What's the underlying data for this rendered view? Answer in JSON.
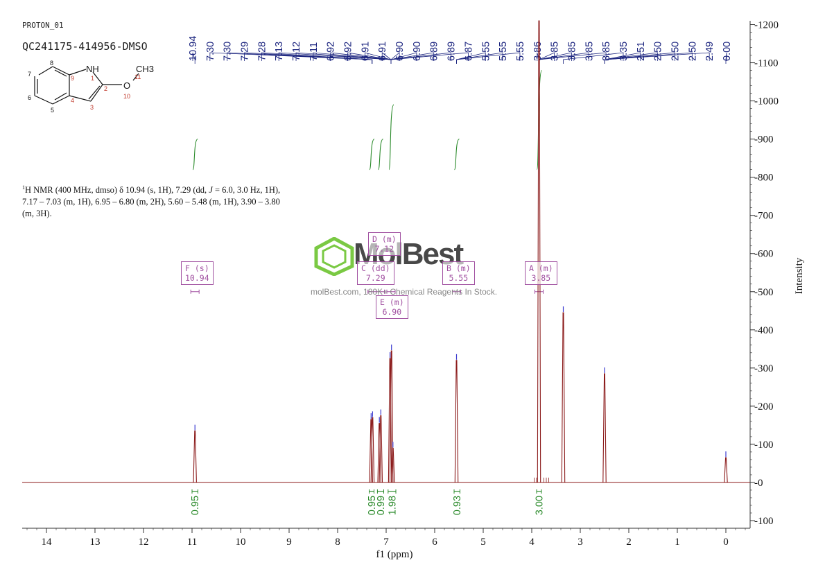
{
  "header": {
    "experiment": "PROTON_01",
    "sample": "QC241175-414956-DMSO"
  },
  "molecule": {
    "atoms": [
      "NH",
      "1",
      "2",
      "3",
      "4",
      "5",
      "6",
      "7",
      "8",
      "9",
      "10",
      "11",
      "O",
      "CH3"
    ]
  },
  "description": {
    "line1_pre": "H NMR (400 MHz, dmso) δ 10.94 (s, 1H), 7.29 (dd, ",
    "j_symbol": "J",
    "line1_post": " = 6.0, 3.0 Hz, 1H),",
    "superscript": "1",
    "line2": "7.17 – 7.03 (m, 1H), 6.95 – 6.80 (m, 2H), 5.60 – 5.48 (m, 1H), 3.90 – 3.80",
    "line3": "(m, 3H)."
  },
  "watermark": {
    "name": "MolBest",
    "tagline": "molBest.com, 180K+ Chemical Reagents In Stock."
  },
  "colors": {
    "spectrum": "#8b1a1a",
    "integral": "#2a8a2a",
    "peak_label": "#1a237e",
    "multiplet": "#a04fa0",
    "axis": "#333333",
    "watermark_green": "#7ac943"
  },
  "chart_data": {
    "type": "line",
    "xlabel": "f1 (ppm)",
    "ylabel": "Intensity",
    "xlim": [
      14.5,
      -0.5
    ],
    "ylim": [
      -120,
      1210
    ],
    "x_ticks": [
      14,
      13,
      12,
      11,
      10,
      9,
      8,
      7,
      6,
      5,
      4,
      3,
      2,
      1,
      0
    ],
    "y_ticks": [
      -100,
      0,
      100,
      200,
      300,
      400,
      500,
      600,
      700,
      800,
      900,
      1000,
      1100,
      1200
    ],
    "peaks": [
      {
        "ppm": 10.94,
        "height": 135
      },
      {
        "ppm": 7.31,
        "height": 165
      },
      {
        "ppm": 7.28,
        "height": 170
      },
      {
        "ppm": 7.14,
        "height": 155
      },
      {
        "ppm": 7.11,
        "height": 175
      },
      {
        "ppm": 6.92,
        "height": 325
      },
      {
        "ppm": 6.89,
        "height": 345
      },
      {
        "ppm": 6.86,
        "height": 90
      },
      {
        "ppm": 5.55,
        "height": 320
      },
      {
        "ppm": 3.85,
        "height": 1210
      },
      {
        "ppm": 3.35,
        "height": 445
      },
      {
        "ppm": 2.5,
        "height": 285
      },
      {
        "ppm": 0.0,
        "height": 65
      }
    ],
    "peak_labels": [
      "10.94",
      "7.30",
      "7.30",
      "7.29",
      "7.28",
      "7.13",
      "7.12",
      "7.11",
      "6.92",
      "6.92",
      "6.91",
      "6.91",
      "6.90",
      "6.90",
      "6.89",
      "6.89",
      "6.87",
      "5.55",
      "5.55",
      "5.55",
      "3.86",
      "3.85",
      "3.85",
      "3.85",
      "3.85",
      "3.35",
      "2.51",
      "2.50",
      "2.50",
      "2.50",
      "2.49",
      "0.00"
    ],
    "integrals": [
      {
        "label": "0.95",
        "from": 11.0,
        "to": 10.88
      },
      {
        "label": "0.95",
        "from": 7.35,
        "to": 7.25
      },
      {
        "label": "0.99",
        "from": 7.18,
        "to": 7.05
      },
      {
        "label": "1.98",
        "from": 6.96,
        "to": 6.8
      },
      {
        "label": "0.93",
        "from": 5.6,
        "to": 5.48
      },
      {
        "label": "3.00",
        "from": 3.9,
        "to": 3.8
      }
    ],
    "multiplets": [
      {
        "name": "F (s)",
        "value": "10.94",
        "ppm": 10.94
      },
      {
        "name": "C (dd)",
        "value": "7.29",
        "ppm": 7.29
      },
      {
        "name": "D (m)",
        "value": "7.12",
        "ppm": 7.12
      },
      {
        "name": "E (m)",
        "value": "6.90",
        "ppm": 6.9
      },
      {
        "name": "B (m)",
        "value": "5.55",
        "ppm": 5.55
      },
      {
        "name": "A (m)",
        "value": "3.85",
        "ppm": 3.85
      }
    ]
  }
}
